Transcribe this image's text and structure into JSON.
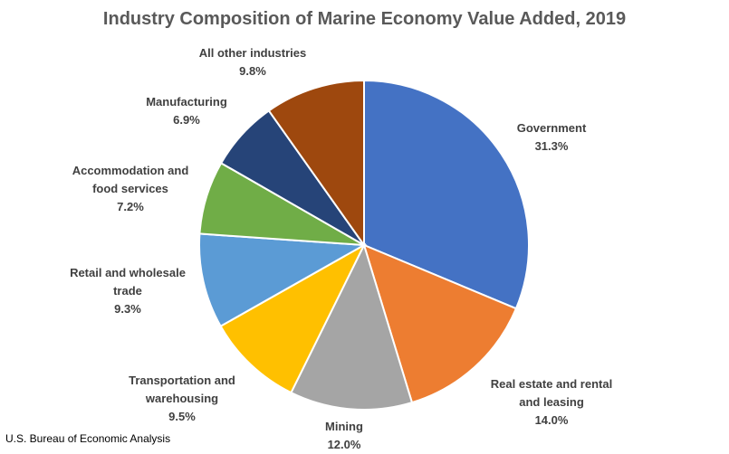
{
  "chart_data": {
    "type": "pie",
    "title": "Industry Composition of Marine Economy Value Added, 2019",
    "source": "U.S. Bureau of Economic Analysis",
    "categories": [
      "Government",
      "Real estate and rental and leasing",
      "Mining",
      "Transportation and warehousing",
      "Retail and wholesale trade",
      "Accommodation and food services",
      "Manufacturing",
      "All other industries"
    ],
    "values": [
      31.3,
      14.0,
      12.0,
      9.5,
      9.3,
      7.2,
      6.9,
      9.8
    ],
    "value_labels": [
      "31.3%",
      "14.0%",
      "12.0%",
      "9.5%",
      "9.3%",
      "7.2%",
      "6.9%",
      "9.8%"
    ],
    "colors": [
      "#4472c4",
      "#ed7d31",
      "#a5a5a5",
      "#ffc000",
      "#5b9bd5",
      "#70ad47",
      "#264478",
      "#9e480e"
    ]
  }
}
